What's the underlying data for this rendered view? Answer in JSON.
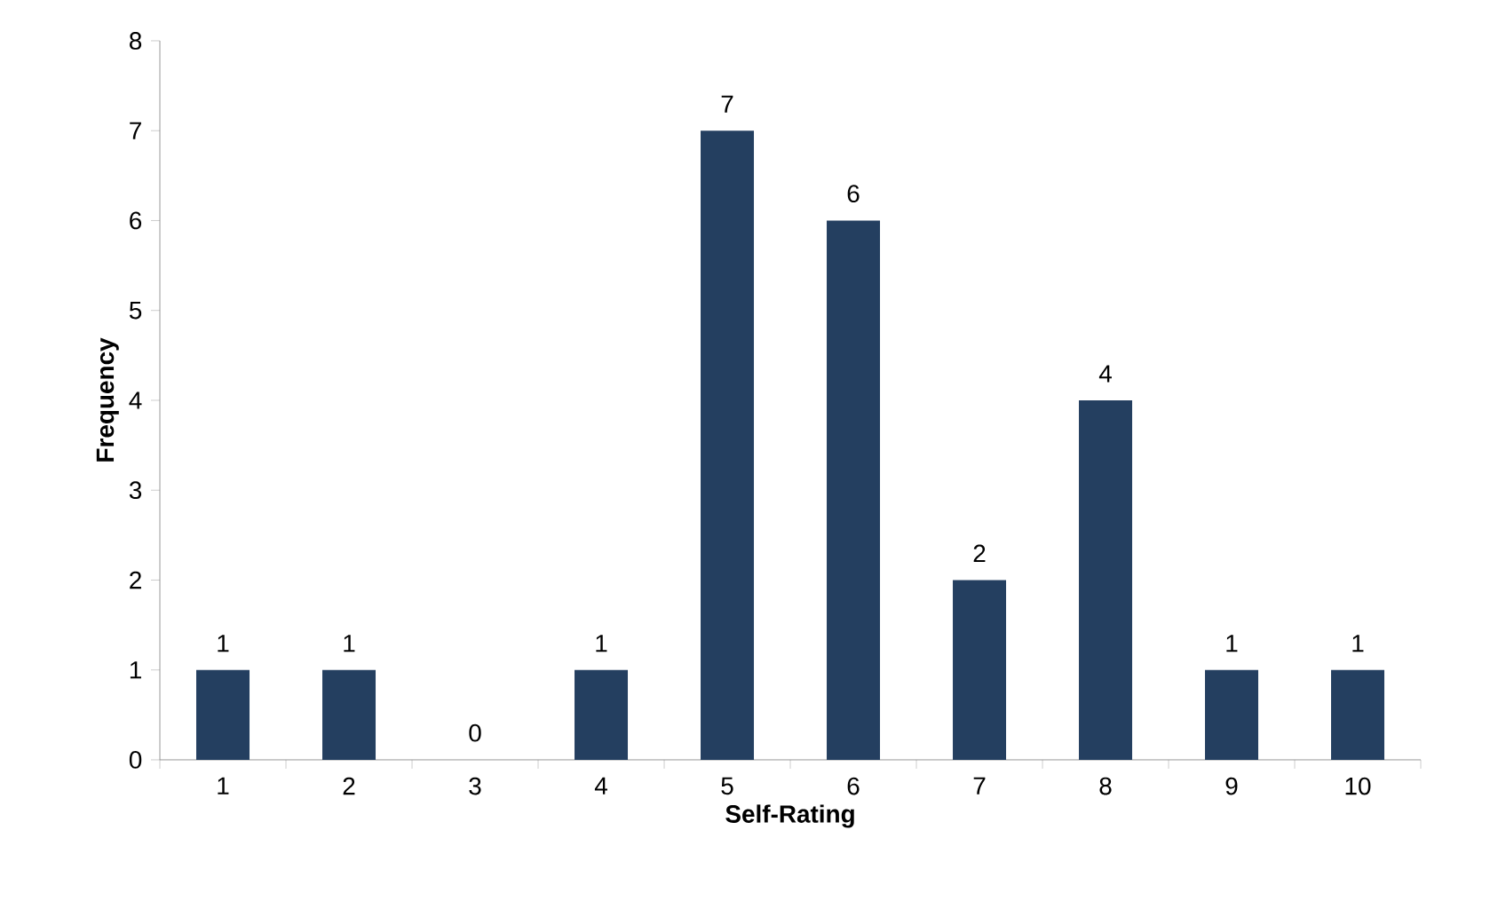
{
  "chart_data": {
    "type": "bar",
    "xlabel": "Self-Rating",
    "ylabel": "Frequency",
    "categories": [
      "1",
      "2",
      "3",
      "4",
      "5",
      "6",
      "7",
      "8",
      "9",
      "10"
    ],
    "values": [
      1,
      1,
      0,
      1,
      7,
      6,
      2,
      4,
      1,
      1
    ],
    "color": "#243f60",
    "ylim": [
      0,
      8
    ],
    "yticks": [
      0,
      1,
      2,
      3,
      4,
      5,
      6,
      7,
      8
    ],
    "grid": false,
    "data_labels": true
  }
}
